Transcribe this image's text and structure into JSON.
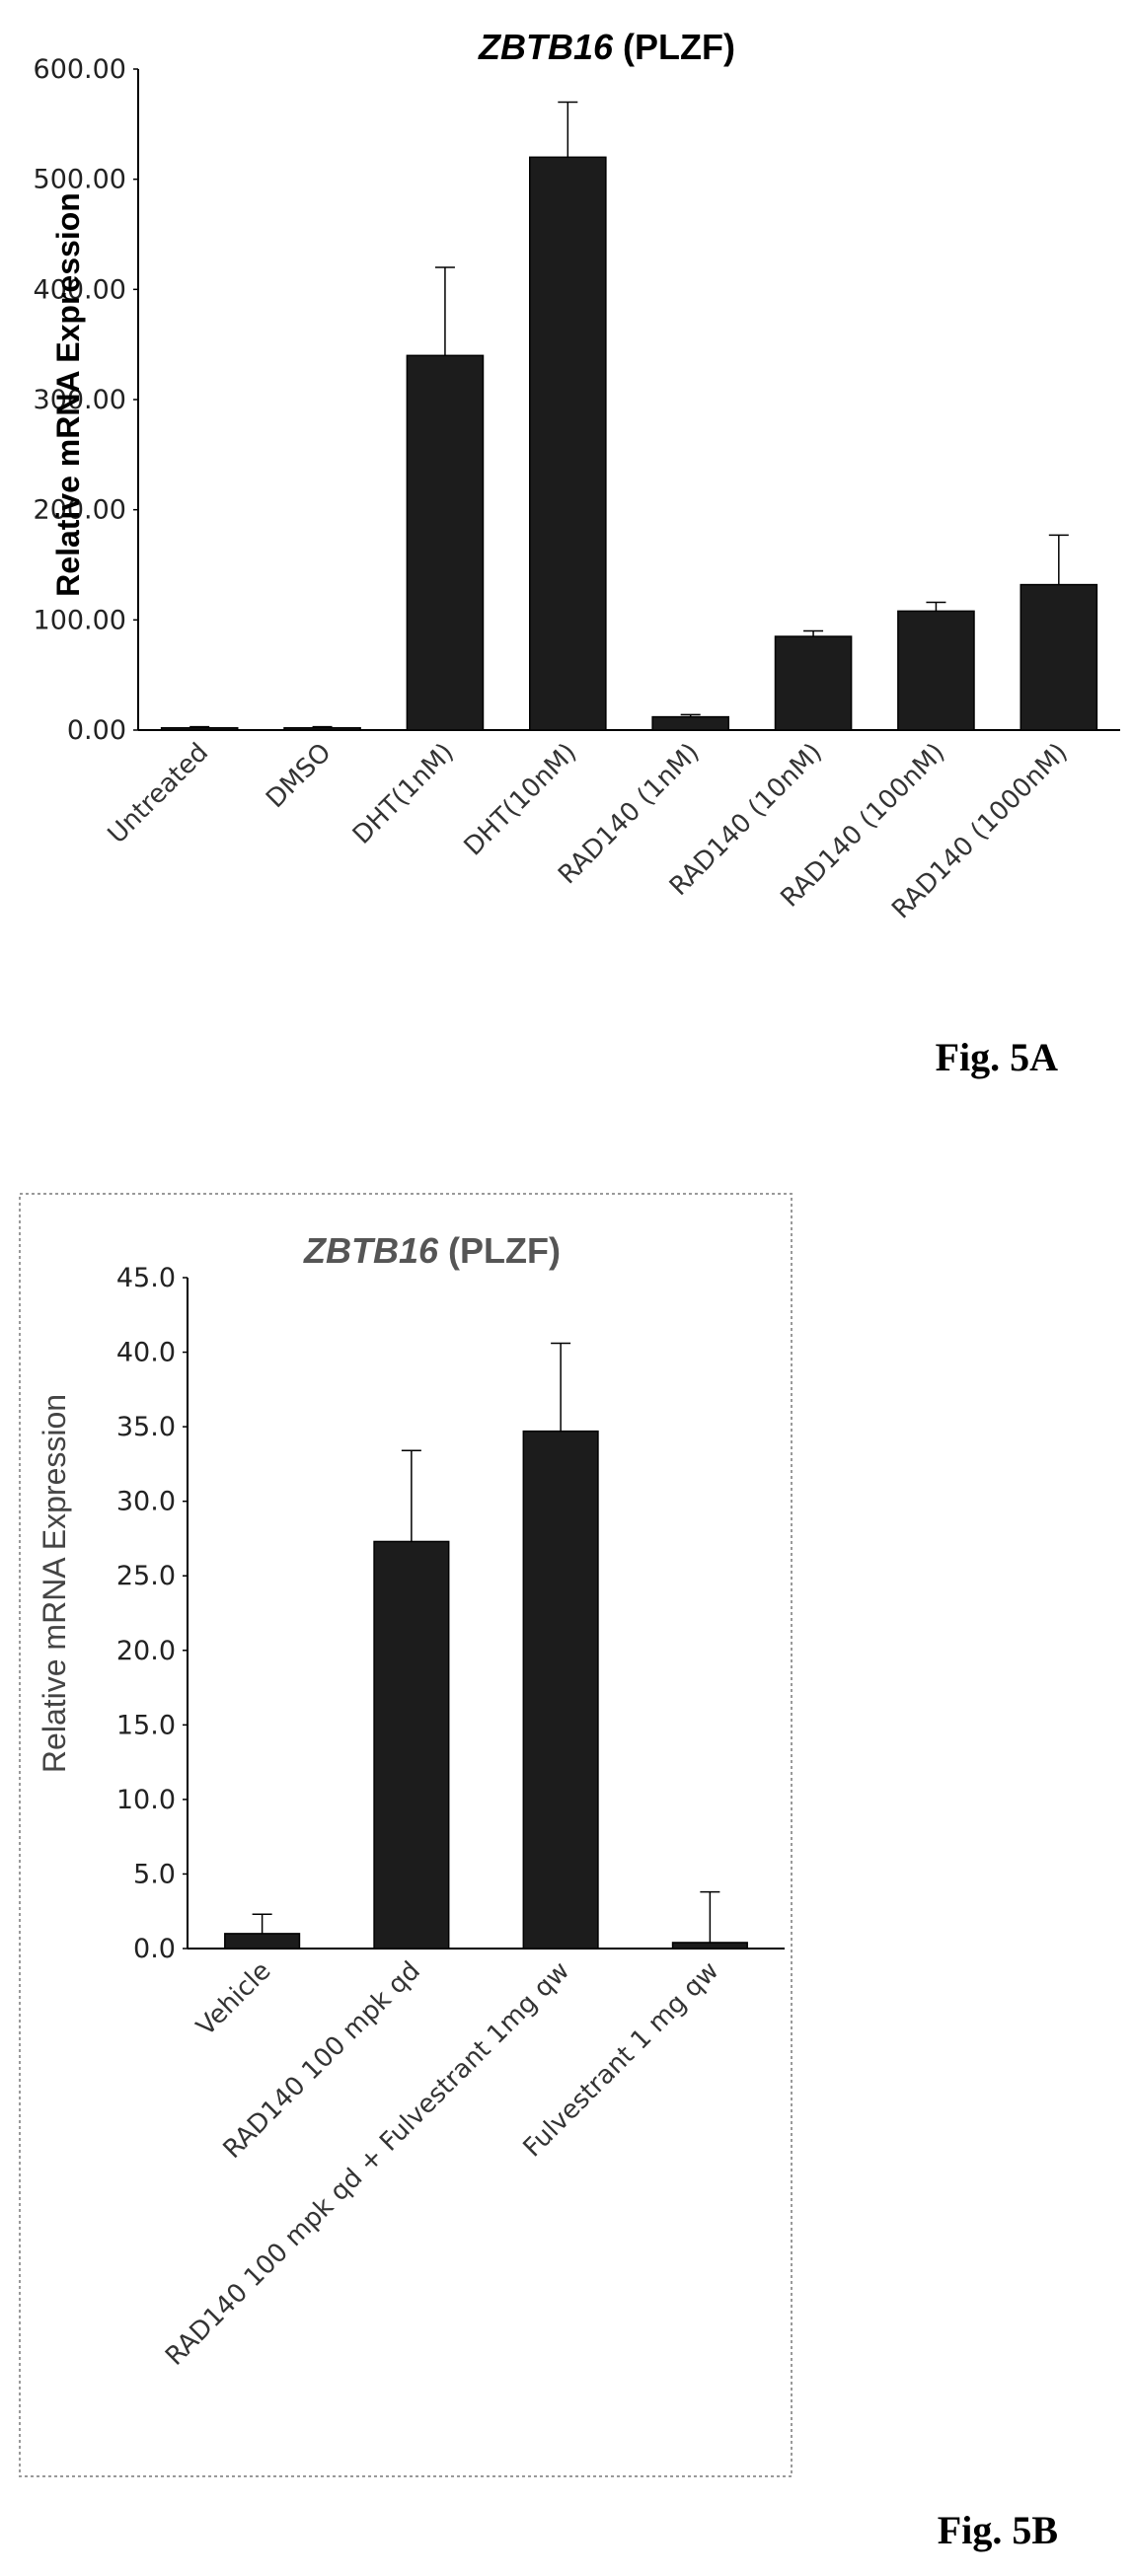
{
  "chart_data": [
    {
      "type": "bar",
      "title": "ZBTB16 (PLZF)",
      "title_italic": "ZBTB16",
      "title_plain": "(PLZF)",
      "ylabel": "Relative mRNA Expression",
      "xlabel": "",
      "ylim": [
        0,
        600
      ],
      "yticks": [
        "0.00",
        "100.00",
        "200.00",
        "300.00",
        "400.00",
        "500.00",
        "600.00"
      ],
      "categories": [
        "Untreated",
        "DMSO",
        "DHT(1nM)",
        "DHT(10nM)",
        "RAD140 (1nM)",
        "RAD140 (10nM)",
        "RAD140 (100nM)",
        "RAD140 (1000nM)"
      ],
      "values": [
        2,
        2,
        340,
        520,
        12,
        85,
        108,
        132
      ],
      "error": [
        1,
        1,
        80,
        50,
        2,
        5,
        8,
        45
      ],
      "grid": false,
      "legend": "none",
      "bar_color": "#1c1c1c",
      "figure_label": "Fig. 5A"
    },
    {
      "type": "bar",
      "title": "ZBTB16 (PLZF)",
      "title_italic": "ZBTB16",
      "title_plain": "(PLZF)",
      "ylabel": "Relative mRNA Expression",
      "xlabel": "",
      "ylim": [
        0,
        45
      ],
      "yticks": [
        "0.0",
        "5.0",
        "10.0",
        "15.0",
        "20.0",
        "25.0",
        "30.0",
        "35.0",
        "40.0",
        "45.0"
      ],
      "categories": [
        "Vehicle",
        "RAD140 100 mpk qd",
        "RAD140 100 mpk qd + Fulvestrant 1mg qw",
        "Fulvestrant 1 mg qw"
      ],
      "values": [
        1.0,
        27.3,
        34.7,
        0.4
      ],
      "error": [
        1.3,
        6.1,
        5.9,
        3.4
      ],
      "grid": false,
      "legend": "none",
      "bar_color": "#1c1c1c",
      "title_color": "#555555",
      "figure_label": "Fig. 5B"
    }
  ]
}
